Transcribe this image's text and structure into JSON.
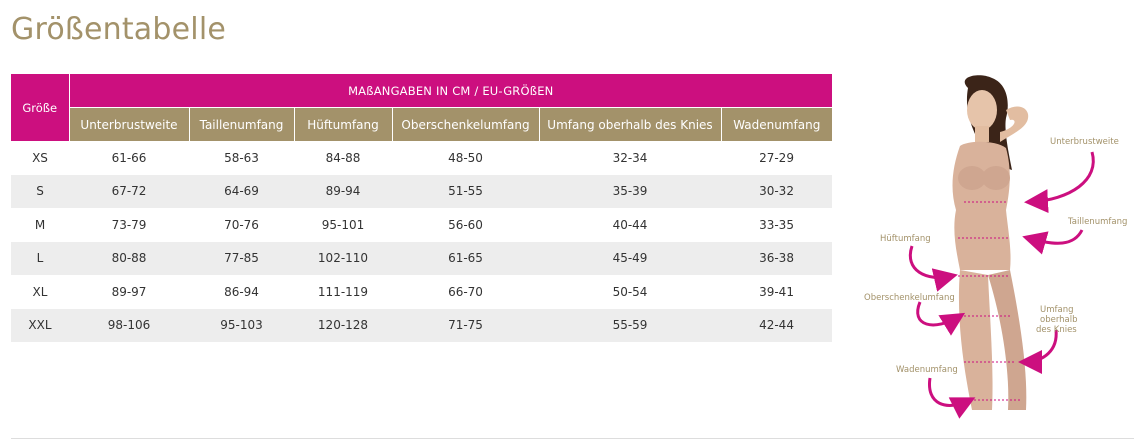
{
  "title": "Größentabelle",
  "table": {
    "size_header": "Größe",
    "group_header": "MAßANGABEN IN CM / EU-GRÖßEN",
    "columns": [
      "Unterbrustweite",
      "Taillenumfang",
      "Hüftumfang",
      "Oberschenkelumfang",
      "Umfang oberhalb des Knies",
      "Wadenumfang"
    ],
    "rows": [
      {
        "size": "XS",
        "values": [
          "61-66",
          "58-63",
          "84-88",
          "48-50",
          "32-34",
          "27-29"
        ]
      },
      {
        "size": "S",
        "values": [
          "67-72",
          "64-69",
          "89-94",
          "51-55",
          "35-39",
          "30-32"
        ]
      },
      {
        "size": "M",
        "values": [
          "73-79",
          "70-76",
          "95-101",
          "56-60",
          "40-44",
          "33-35"
        ]
      },
      {
        "size": "L",
        "values": [
          "80-88",
          "77-85",
          "102-110",
          "61-65",
          "45-49",
          "36-38"
        ]
      },
      {
        "size": "XL",
        "values": [
          "89-97",
          "86-94",
          "111-119",
          "66-70",
          "50-54",
          "39-41"
        ]
      },
      {
        "size": "XXL",
        "values": [
          "98-106",
          "95-103",
          "120-128",
          "71-75",
          "55-59",
          "42-44"
        ]
      }
    ]
  },
  "figure": {
    "labels": {
      "unterbrustweite": "Unterbrustweite",
      "taillenumfang": "Taillenumfang",
      "hueftumfang": "Hüftumfang",
      "oberschenkelumfang": "Oberschenkelumfang",
      "knie_line1": "Umfang",
      "knie_line2": "oberhalb",
      "knie_line3": "des Knies",
      "wadenumfang": "Wadenumfang"
    }
  },
  "colors": {
    "accent_pink": "#cc0f7f",
    "accent_gold": "#a3926a",
    "row_alt": "#ededed"
  }
}
